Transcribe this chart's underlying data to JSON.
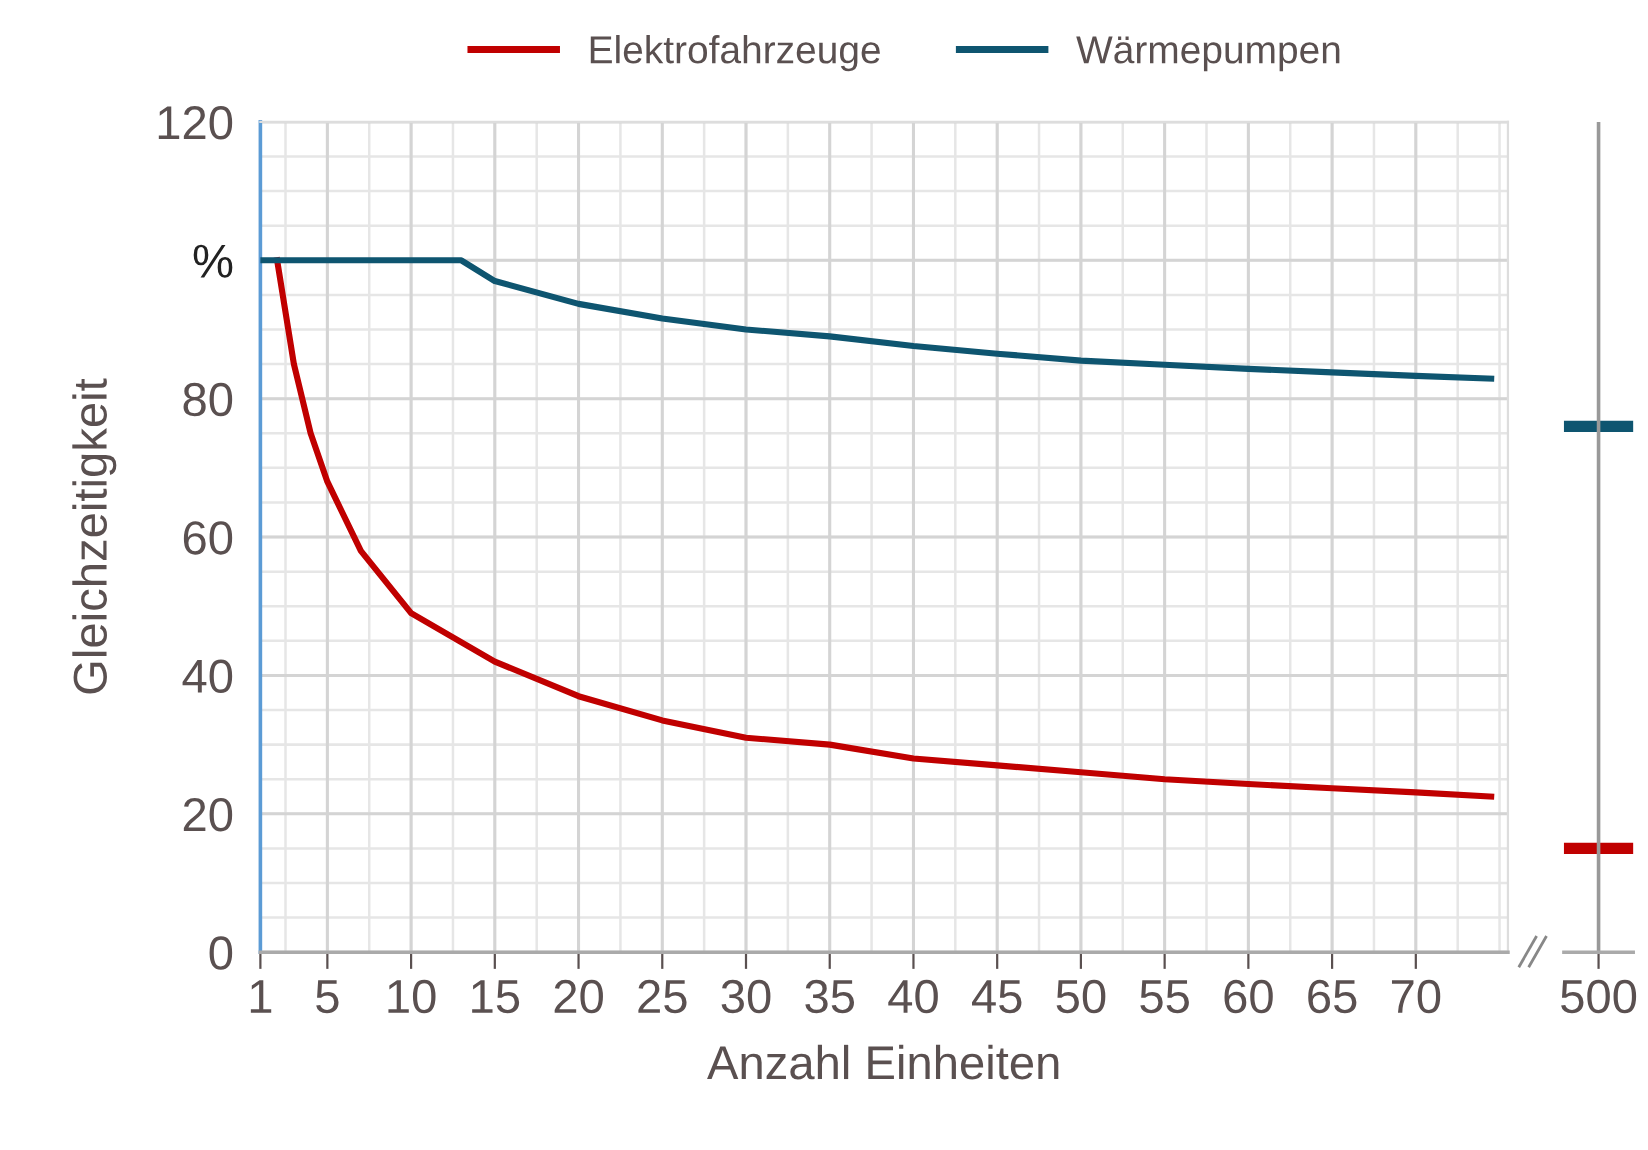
{
  "chart_data": [
    {
      "type": "line",
      "xlabel": "Anzahl Einheiten",
      "ylabel": "Gleichzeitigkeit",
      "legend": "top",
      "grid": true,
      "xlim": [
        1,
        75.5
      ],
      "xticks": [
        1,
        5,
        10,
        15,
        20,
        25,
        30,
        35,
        40,
        45,
        50,
        55,
        60,
        65,
        70
      ],
      "ylim": [
        0,
        120
      ],
      "yticks": [
        0,
        20,
        40,
        60,
        80,
        {
          "value": 100,
          "label": "%"
        },
        120
      ],
      "series": [
        {
          "name": "Elektrofahrzeuge",
          "color": "#c00000",
          "x": [
            2,
            3,
            4,
            5,
            7,
            10,
            15,
            20,
            25,
            30,
            35,
            40,
            45,
            50,
            55,
            60,
            65,
            70,
            74.5
          ],
          "values": [
            100,
            85,
            75,
            68,
            58,
            49,
            42,
            37,
            33.5,
            31,
            30,
            28,
            27,
            26,
            25,
            24.3,
            23.7,
            23.1,
            22.5
          ]
        },
        {
          "name": "Wärmepumpen",
          "color": "#0e5570",
          "x": [
            1,
            13,
            15,
            20,
            25,
            30,
            35,
            40,
            45,
            50,
            55,
            60,
            65,
            70,
            74.5
          ],
          "values": [
            100,
            100,
            97,
            93.7,
            91.6,
            90,
            89,
            87.6,
            86.5,
            85.5,
            84.9,
            84.3,
            83.8,
            83.3,
            82.9
          ]
        }
      ]
    },
    {
      "type": "line",
      "tick_labels": "x",
      "categories": [
        "500"
      ],
      "ylim": [
        0,
        120
      ],
      "ref_lines": [
        {
          "axis": "y",
          "value": 15,
          "color": "#c00000"
        },
        {
          "axis": "y",
          "value": 76,
          "color": "#0e5570"
        },
        {
          "axis": "x",
          "value": "500",
          "color": "#999999"
        }
      ]
    }
  ]
}
